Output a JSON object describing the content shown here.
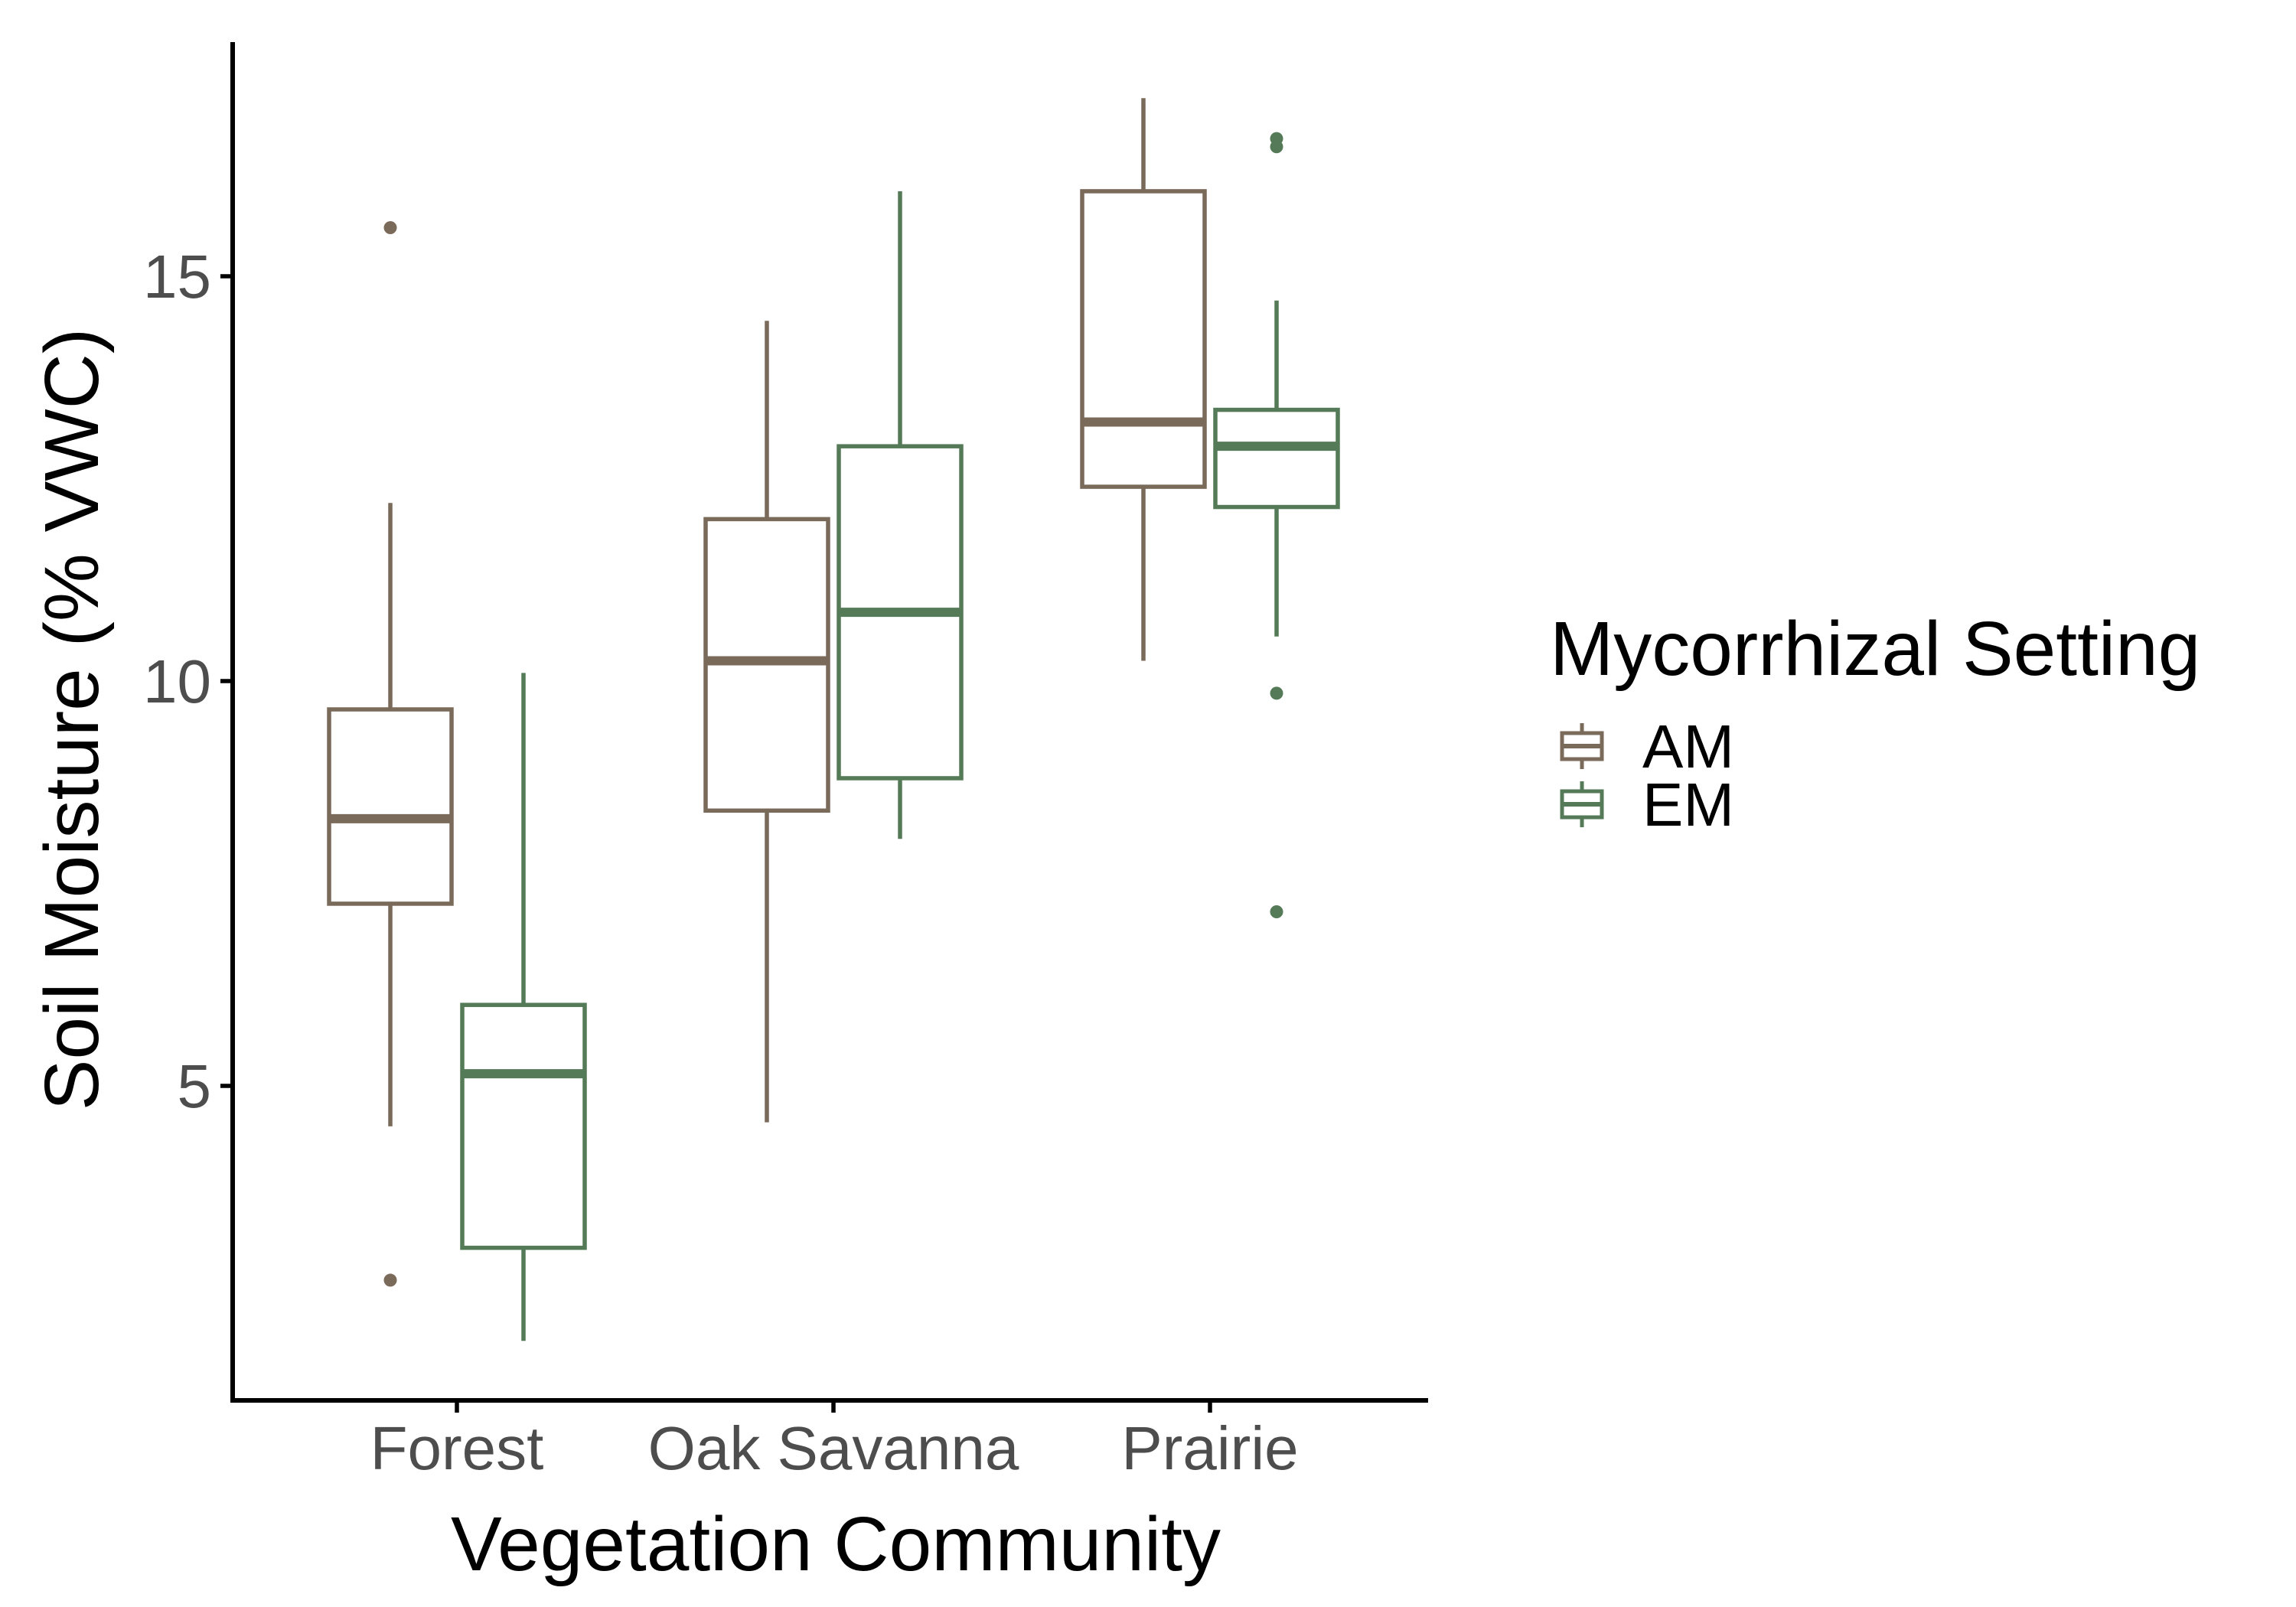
{
  "chart_data": {
    "type": "boxplot",
    "xlabel": "Vegetation Community",
    "ylabel": "Soil Moisture (% VWC)",
    "categories": [
      "Forest",
      "Oak Savanna",
      "Prairie"
    ],
    "yticks": [
      5,
      10,
      15
    ],
    "ylim": [
      1.2,
      18.0
    ],
    "grid": false,
    "legend": {
      "title": "Mycorrhizal Setting",
      "position": "right"
    },
    "series": [
      {
        "name": "AM",
        "color": "#7a6a5a",
        "boxes": [
          {
            "category": "Forest",
            "whisker_low": 4.5,
            "q1": 7.25,
            "median": 8.3,
            "q3": 9.65,
            "whisker_high": 12.2,
            "outliers": [
              15.6,
              2.6
            ]
          },
          {
            "category": "Oak Savanna",
            "whisker_low": 4.55,
            "q1": 8.4,
            "median": 10.25,
            "q3": 12.0,
            "whisker_high": 14.45,
            "outliers": []
          },
          {
            "category": "Prairie",
            "whisker_low": 10.25,
            "q1": 12.4,
            "median": 13.2,
            "q3": 16.05,
            "whisker_high": 17.2,
            "outliers": []
          }
        ]
      },
      {
        "name": "EM",
        "color": "#557a57",
        "boxes": [
          {
            "category": "Forest",
            "whisker_low": 1.85,
            "q1": 3.0,
            "median": 5.15,
            "q3": 6.0,
            "whisker_high": 10.1,
            "outliers": []
          },
          {
            "category": "Oak Savanna",
            "whisker_low": 8.05,
            "q1": 8.8,
            "median": 10.85,
            "q3": 12.9,
            "whisker_high": 16.05,
            "outliers": []
          },
          {
            "category": "Prairie",
            "whisker_low": 10.55,
            "q1": 12.15,
            "median": 12.9,
            "q3": 13.35,
            "whisker_high": 14.7,
            "outliers": [
              16.7,
              16.6,
              9.85,
              7.15
            ]
          }
        ]
      }
    ]
  }
}
